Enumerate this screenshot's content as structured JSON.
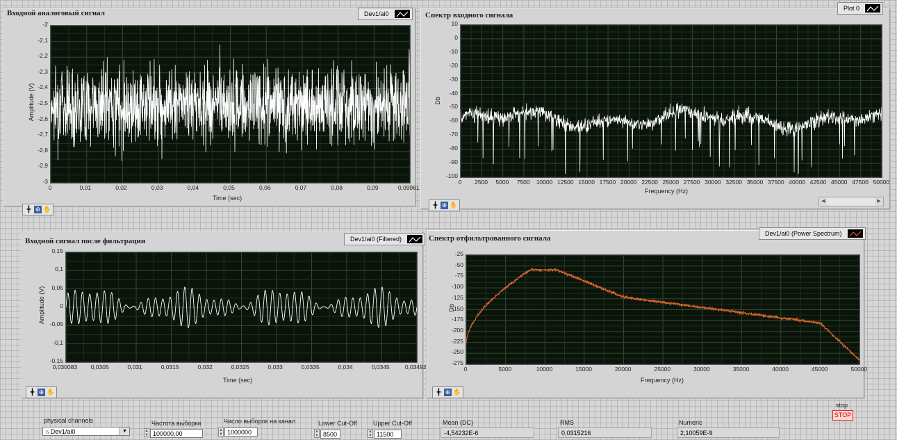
{
  "graph1": {
    "title": "Входной аналоговый сигнал",
    "legend": "Dev1/ai0",
    "ylabel": "Amplitude (V)",
    "xlabel": "Time (sec)",
    "yticks": [
      "-2",
      "-2,1",
      "-2,2",
      "-2,3",
      "-2,4",
      "-2,5",
      "-2,6",
      "-2,7",
      "-2,8",
      "-2,9",
      "-3"
    ],
    "xticks": [
      "0",
      "0,01",
      "0,02",
      "0,03",
      "0,04",
      "0,05",
      "0,06",
      "0,07",
      "0,08",
      "0,09",
      "0,09961"
    ]
  },
  "graph2": {
    "title": "Спектр  входного сигнала",
    "legend": "Plot 0",
    "ylabel": "Db",
    "xlabel": "Frequency (Hz)",
    "yticks": [
      "10",
      "0",
      "-10",
      "-20",
      "-30",
      "-40",
      "-50",
      "-60",
      "-70",
      "-80",
      "-90",
      "-100"
    ],
    "xticks": [
      "0",
      "2500",
      "5000",
      "7500",
      "10000",
      "12500",
      "15000",
      "17500",
      "20000",
      "22500",
      "25000",
      "27500",
      "30000",
      "32500",
      "35000",
      "37500",
      "40000",
      "42500",
      "45000",
      "47500",
      "50000"
    ]
  },
  "graph3": {
    "title": "Входной сигнал после фильтрации",
    "legend": "Dev1/ai0 (Filtered)",
    "ylabel": "Amplitude (V)",
    "xlabel": "Time (sec)",
    "yticks": [
      "0,15",
      "0,1",
      "0,05",
      "0",
      "-0,05",
      "-0,1",
      "-0,15"
    ],
    "xticks": [
      "0,030083",
      "0,0305",
      "0,031",
      "0,0315",
      "0,032",
      "0,0325",
      "0,033",
      "0,0335",
      "0,034",
      "0,0345",
      "0,03492"
    ]
  },
  "graph4": {
    "title": "Спектр  отфильтрованного сигнала",
    "legend": "Dev1/ai0 (Power Spectrum)",
    "ylabel": "Db",
    "xlabel": "Frequency (Hz)",
    "yticks": [
      "-25",
      "-50",
      "-75",
      "-100",
      "-125",
      "-150",
      "-175",
      "-200",
      "-225",
      "-250",
      "-275"
    ],
    "xticks": [
      "0",
      "5000",
      "10000",
      "15000",
      "20000",
      "25000",
      "30000",
      "35000",
      "40000",
      "45000",
      "50000"
    ]
  },
  "controls": {
    "physical_channels_label": "physical channels",
    "physical_channels_value": "Dev1/ai0",
    "sample_rate_label": "Частота выборки",
    "sample_rate_value": "100000,00",
    "samples_label": "Число выборок на канал",
    "samples_value": "1000000",
    "lower_label": "Lower Cut-Off",
    "lower_value": "8500",
    "upper_label": "Upper Cut-Off",
    "upper_value": "11500",
    "mean_label": "Mean (DC)",
    "mean_value": "-4,54232E-6",
    "rms_label": "RMS",
    "rms_value": "0,0315216",
    "numeric_label": "Numeric",
    "numeric_value": "2,10059E-9",
    "stop_label": "stop",
    "stop_button": "STOP"
  },
  "colors": {
    "plot_bg": "#0b140b",
    "grid": "#2f4a2f",
    "trace_white": "#ffffff",
    "trace_orange": "#d9652a"
  },
  "icons": [
    "cursor-move-icon",
    "zoom-icon",
    "pan-hand-icon",
    "trace-line-icon",
    "dropdown-arrow-icon",
    "spinner-icon"
  ]
}
